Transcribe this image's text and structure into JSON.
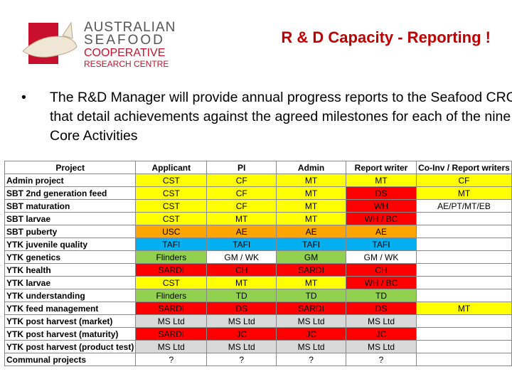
{
  "logo": {
    "line1": "AUSTRALIAN",
    "line2": "SEAFOOD",
    "line3": "COOPERATIVE",
    "line4": "RESEARCH CENTRE"
  },
  "header": {
    "title": "R & D Capacity - Reporting !"
  },
  "bullet": "The R&D Manager will provide annual progress reports to the Seafood CRC that detail achievements against the agreed milestones for each of the nine Core Activities",
  "table": {
    "columns": [
      "Project",
      "Applicant",
      "PI",
      "Admin",
      "Report writer",
      "Co-Inv / Report writers"
    ],
    "rows": [
      [
        "Admin project",
        "CST",
        "CF",
        "MT",
        "MT",
        "CF"
      ],
      [
        "SBT 2nd generation feed",
        "CST",
        "CF",
        "MT",
        "DS",
        "MT"
      ],
      [
        "SBT maturation",
        "CST",
        "CF",
        "MT",
        "WH",
        "AE/PT/MT/EB"
      ],
      [
        "SBT larvae",
        "CST",
        "MT",
        "MT",
        "WH / BC",
        null
      ],
      [
        "SBT puberty",
        "USC",
        "AE",
        "AE",
        "AE",
        null
      ],
      [
        "YTK juvenile quality",
        "TAFI",
        "TAFI",
        "TAFI",
        "TAFI",
        null
      ],
      [
        "YTK genetics",
        "Flinders",
        "GM / WK",
        "GM",
        "GM / WK",
        null
      ],
      [
        "YTK health",
        "SARDI",
        "CH",
        "SARDI",
        "CH",
        null
      ],
      [
        "YTK larvae",
        "CST",
        "MT",
        "MT",
        "WH / BC",
        null
      ],
      [
        "YTK understanding",
        "Flinders",
        "TD",
        "TD",
        "TD",
        null
      ],
      [
        "YTK feed management",
        "SARDI",
        "DS",
        "SARDI",
        "DS",
        "MT"
      ],
      [
        "YTK post harvest (market)",
        "MS Ltd",
        "MS Ltd",
        "MS Ltd",
        "MS Ltd",
        null
      ],
      [
        "YTK post harvest (maturity)",
        "SARDI",
        "JC",
        "JC",
        "JC",
        null
      ],
      [
        "YTK post harvest (product test)",
        "MS Ltd",
        "MS Ltd",
        "MS Ltd",
        "MS Ltd",
        null
      ],
      [
        "Communal projects",
        "?",
        "?",
        "?",
        "?",
        null
      ]
    ],
    "colors": [
      [
        null,
        "#ffff00",
        "#ffff00",
        "#ffff00",
        "#ffff00",
        "#ffff00"
      ],
      [
        null,
        "#ffff00",
        "#ffff00",
        "#ffff00",
        "#ff0000",
        "#ffff00"
      ],
      [
        null,
        "#ffff00",
        "#ffff00",
        "#ffff00",
        "#ff0000",
        null
      ],
      [
        null,
        "#ffff00",
        "#ffff00",
        "#ffff00",
        "#ff0000",
        null
      ],
      [
        null,
        "#ffa500",
        "#ffa500",
        "#ffa500",
        "#ffa500",
        null
      ],
      [
        null,
        "#00b0f0",
        "#00b0f0",
        "#00b0f0",
        "#00b0f0",
        null
      ],
      [
        null,
        "#92d050",
        null,
        "#92d050",
        null,
        null
      ],
      [
        null,
        "#ff0000",
        "#ff0000",
        "#ff0000",
        "#ff0000",
        null
      ],
      [
        null,
        "#ffff00",
        "#ffff00",
        "#ffff00",
        "#ff0000",
        null
      ],
      [
        null,
        "#92d050",
        "#92d050",
        "#92d050",
        "#92d050",
        null
      ],
      [
        null,
        "#ff0000",
        "#ff0000",
        "#ff0000",
        "#ff0000",
        "#ffff00"
      ],
      [
        null,
        "#d9d9d9",
        "#d9d9d9",
        "#d9d9d9",
        "#d9d9d9",
        null
      ],
      [
        null,
        "#ff0000",
        "#ff0000",
        "#ff0000",
        "#ff0000",
        null
      ],
      [
        null,
        "#d9d9d9",
        "#d9d9d9",
        "#d9d9d9",
        "#d9d9d9",
        null
      ],
      [
        null,
        null,
        null,
        null,
        null,
        null
      ]
    ]
  }
}
